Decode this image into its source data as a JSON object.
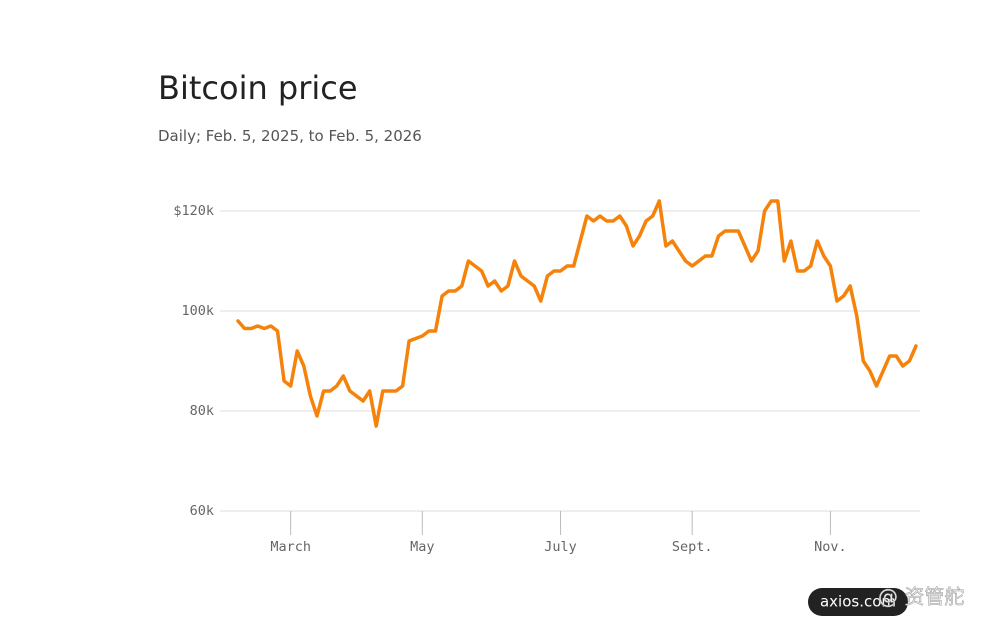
{
  "chart_data": {
    "type": "line",
    "title": "Bitcoin price",
    "subtitle": "Daily; Feb. 5, 2025, to Feb. 5, 2026",
    "categories": [
      null,
      null,
      null,
      null,
      null,
      null,
      null,
      null,
      "March",
      null,
      null,
      null,
      null,
      null,
      null,
      null,
      null,
      null,
      null,
      null,
      null,
      null,
      null,
      null,
      null,
      null,
      null,
      null,
      "May",
      null,
      null,
      null,
      null,
      null,
      null,
      null,
      null,
      null,
      null,
      null,
      null,
      null,
      null,
      null,
      null,
      null,
      null,
      null,
      null,
      "July",
      null,
      null,
      null,
      null,
      null,
      null,
      null,
      null,
      null,
      null,
      null,
      null,
      null,
      null,
      null,
      null,
      null,
      null,
      null,
      "Sept.",
      null,
      null,
      null,
      null,
      null,
      null,
      null,
      null,
      null,
      null,
      null,
      null,
      null,
      null,
      null,
      null,
      null,
      null,
      null,
      null,
      "Nov.",
      null,
      null,
      null,
      null,
      null,
      null,
      null,
      null,
      null,
      null,
      null,
      null,
      null
    ],
    "values": [
      98000,
      96500,
      96500,
      97000,
      96500,
      97000,
      96000,
      86000,
      85000,
      92000,
      89000,
      83000,
      79000,
      84000,
      84000,
      85000,
      87000,
      84000,
      83000,
      82000,
      84000,
      77000,
      84000,
      84000,
      84000,
      85000,
      94000,
      94500,
      95000,
      96000,
      96000,
      103000,
      104000,
      104000,
      105000,
      110000,
      109000,
      108000,
      105000,
      106000,
      104000,
      105000,
      110000,
      107000,
      106000,
      105000,
      102000,
      107000,
      108000,
      108000,
      109000,
      109000,
      114000,
      119000,
      118000,
      119000,
      118000,
      118000,
      119000,
      117000,
      113000,
      115000,
      118000,
      119000,
      122000,
      113000,
      114000,
      112000,
      110000,
      109000,
      110000,
      111000,
      111000,
      115000,
      116000,
      116000,
      116000,
      113000,
      110000,
      112000,
      120000,
      122000,
      122000,
      110000,
      114000,
      108000,
      108000,
      109000,
      114000,
      111000,
      109000,
      102000,
      103000,
      105000,
      99000,
      90000,
      88000,
      85000,
      88000,
      91000,
      91000,
      89000,
      90000,
      93000
    ],
    "color": "#f5820a",
    "ylim": [
      60000,
      126000
    ],
    "yticks": [
      {
        "value": 60000,
        "label": "60k"
      },
      {
        "value": 80000,
        "label": "80k"
      },
      {
        "value": 100000,
        "label": "100k"
      },
      {
        "value": 120000,
        "label": "$120k"
      }
    ],
    "grid": true,
    "watermark": "axios.com",
    "watermark_source": "@ 资管舵"
  }
}
